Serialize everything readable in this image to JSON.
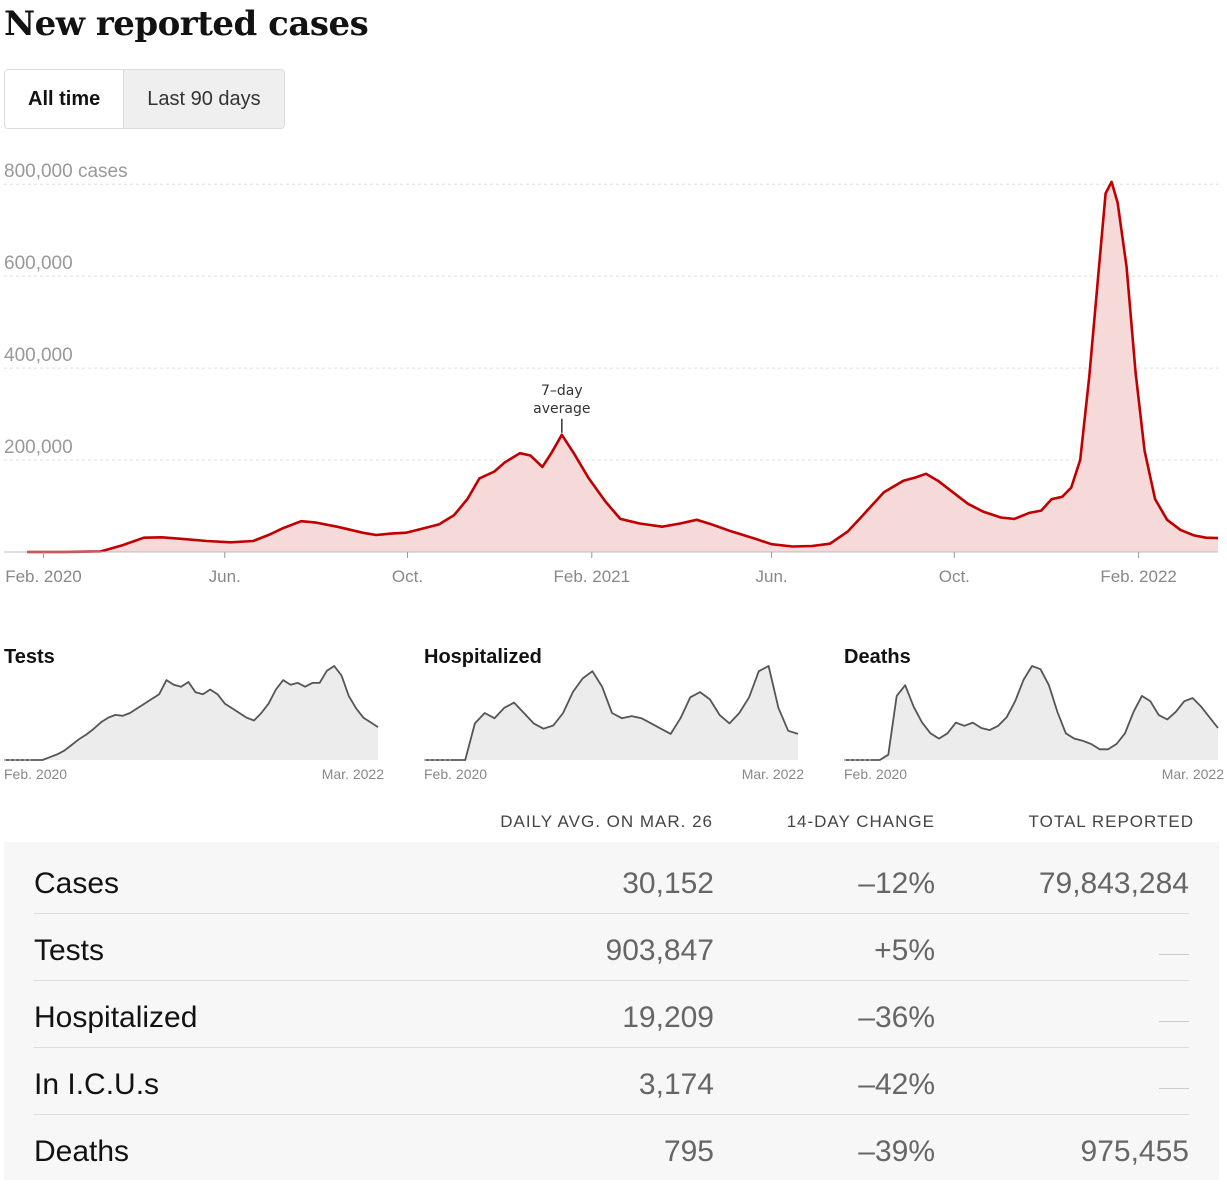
{
  "header": {
    "title": "New reported cases"
  },
  "toggle": {
    "options": [
      "All time",
      "Last 90 days"
    ],
    "selected": "All time"
  },
  "colors": {
    "line": "#c00000",
    "fill": "#f6dada",
    "small_line": "#555555",
    "small_fill": "#ececec"
  },
  "chart_data": [
    {
      "type": "area",
      "title": "New reported cases",
      "y_unit_label": "cases",
      "y_ticks": [
        "800,000 cases",
        "600,000",
        "400,000",
        "200,000"
      ],
      "y_tick_values": [
        800000,
        600000,
        400000,
        200000
      ],
      "ylim": [
        0,
        820000
      ],
      "x_ticks": [
        "Feb. 2020",
        "Jun.",
        "Oct.",
        "Feb. 2021",
        "Jun.",
        "Oct.",
        "Feb. 2022"
      ],
      "x_tick_dates": [
        "2020-02-01",
        "2020-06-01",
        "2020-10-01",
        "2021-02-01",
        "2021-06-01",
        "2021-10-01",
        "2022-02-01"
      ],
      "xlim": [
        "2020-01-21",
        "2022-03-26"
      ],
      "grid": true,
      "annotation": {
        "text_lines": [
          "7–day",
          "average"
        ],
        "date": "2021-01-12",
        "value": 255000
      },
      "series": [
        {
          "points": [
            [
              "2020-01-21",
              0
            ],
            [
              "2020-02-15",
              0
            ],
            [
              "2020-03-10",
              1000
            ],
            [
              "2020-03-25",
              15000
            ],
            [
              "2020-04-08",
              31000
            ],
            [
              "2020-04-20",
              32000
            ],
            [
              "2020-05-05",
              28000
            ],
            [
              "2020-05-20",
              24000
            ],
            [
              "2020-06-05",
              21000
            ],
            [
              "2020-06-20",
              24000
            ],
            [
              "2020-07-01",
              38000
            ],
            [
              "2020-07-10",
              52000
            ],
            [
              "2020-07-22",
              67000
            ],
            [
              "2020-08-01",
              64000
            ],
            [
              "2020-08-15",
              55000
            ],
            [
              "2020-09-01",
              42000
            ],
            [
              "2020-09-10",
              37000
            ],
            [
              "2020-09-20",
              40000
            ],
            [
              "2020-09-30",
              42000
            ],
            [
              "2020-10-10",
              50000
            ],
            [
              "2020-10-22",
              60000
            ],
            [
              "2020-11-01",
              80000
            ],
            [
              "2020-11-10",
              115000
            ],
            [
              "2020-11-18",
              160000
            ],
            [
              "2020-11-28",
              175000
            ],
            [
              "2020-12-05",
              195000
            ],
            [
              "2020-12-15",
              215000
            ],
            [
              "2020-12-22",
              210000
            ],
            [
              "2020-12-30",
              185000
            ],
            [
              "2021-01-05",
              215000
            ],
            [
              "2021-01-12",
              255000
            ],
            [
              "2021-01-20",
              215000
            ],
            [
              "2021-01-30",
              160000
            ],
            [
              "2021-02-10",
              110000
            ],
            [
              "2021-02-20",
              72000
            ],
            [
              "2021-03-05",
              62000
            ],
            [
              "2021-03-20",
              55000
            ],
            [
              "2021-04-01",
              62000
            ],
            [
              "2021-04-12",
              70000
            ],
            [
              "2021-04-22",
              60000
            ],
            [
              "2021-05-05",
              45000
            ],
            [
              "2021-05-20",
              30000
            ],
            [
              "2021-06-01",
              17000
            ],
            [
              "2021-06-15",
              12000
            ],
            [
              "2021-06-28",
              13000
            ],
            [
              "2021-07-10",
              18000
            ],
            [
              "2021-07-22",
              45000
            ],
            [
              "2021-08-01",
              80000
            ],
            [
              "2021-08-15",
              130000
            ],
            [
              "2021-08-28",
              155000
            ],
            [
              "2021-09-05",
              162000
            ],
            [
              "2021-09-12",
              170000
            ],
            [
              "2021-09-20",
              155000
            ],
            [
              "2021-09-30",
              130000
            ],
            [
              "2021-10-10",
              105000
            ],
            [
              "2021-10-20",
              88000
            ],
            [
              "2021-11-01",
              75000
            ],
            [
              "2021-11-10",
              72000
            ],
            [
              "2021-11-20",
              85000
            ],
            [
              "2021-11-28",
              90000
            ],
            [
              "2021-12-05",
              115000
            ],
            [
              "2021-12-12",
              120000
            ],
            [
              "2021-12-18",
              140000
            ],
            [
              "2021-12-24",
              200000
            ],
            [
              "2021-12-30",
              380000
            ],
            [
              "2022-01-05",
              600000
            ],
            [
              "2022-01-10",
              780000
            ],
            [
              "2022-01-14",
              805000
            ],
            [
              "2022-01-18",
              760000
            ],
            [
              "2022-01-24",
              620000
            ],
            [
              "2022-01-30",
              390000
            ],
            [
              "2022-02-05",
              220000
            ],
            [
              "2022-02-12",
              115000
            ],
            [
              "2022-02-20",
              70000
            ],
            [
              "2022-03-01",
              48000
            ],
            [
              "2022-03-10",
              36000
            ],
            [
              "2022-03-18",
              31000
            ],
            [
              "2022-03-26",
              30152
            ]
          ]
        }
      ]
    },
    {
      "type": "area",
      "title": "Tests",
      "x_start_label": "Feb. 2020",
      "x_end_label": "Mar. 2022",
      "series": [
        {
          "values": [
            0,
            0,
            0,
            0,
            0,
            0,
            3,
            6,
            10,
            16,
            22,
            27,
            33,
            40,
            45,
            48,
            47,
            50,
            55,
            60,
            65,
            70,
            85,
            80,
            78,
            83,
            72,
            70,
            75,
            70,
            60,
            55,
            50,
            45,
            42,
            50,
            60,
            75,
            85,
            80,
            82,
            78,
            82,
            82,
            95,
            100,
            90,
            68,
            55,
            45,
            40,
            35
          ]
        }
      ]
    },
    {
      "type": "area",
      "title": "Hospitalized",
      "x_start_label": "Feb. 2020",
      "x_end_label": "Mar. 2022",
      "series": [
        {
          "values": [
            0,
            0,
            0,
            0,
            0,
            35,
            45,
            40,
            50,
            55,
            45,
            35,
            30,
            33,
            45,
            65,
            78,
            85,
            70,
            45,
            40,
            42,
            40,
            35,
            30,
            25,
            40,
            60,
            65,
            58,
            43,
            35,
            45,
            60,
            85,
            90,
            50,
            28,
            25
          ]
        }
      ]
    },
    {
      "type": "area",
      "title": "Deaths",
      "x_start_label": "Feb. 2020",
      "x_end_label": "Mar. 2022",
      "series": [
        {
          "values": [
            0,
            0,
            0,
            0,
            0,
            5,
            60,
            70,
            50,
            35,
            25,
            20,
            25,
            35,
            32,
            35,
            30,
            28,
            32,
            40,
            55,
            75,
            88,
            85,
            70,
            45,
            25,
            20,
            18,
            15,
            10,
            10,
            15,
            25,
            45,
            60,
            55,
            42,
            38,
            45,
            55,
            58,
            50,
            40,
            30
          ]
        }
      ]
    }
  ],
  "stats_table": {
    "headers": [
      "DAILY AVG. ON MAR. 26",
      "14-DAY CHANGE",
      "TOTAL REPORTED"
    ],
    "rows": [
      {
        "label": "Cases",
        "daily_avg": "30,152",
        "change": "–12%",
        "total": "79,843,284"
      },
      {
        "label": "Tests",
        "daily_avg": "903,847",
        "change": "+5%",
        "total": ""
      },
      {
        "label": "Hospitalized",
        "daily_avg": "19,209",
        "change": "–36%",
        "total": ""
      },
      {
        "label": "In I.C.U.s",
        "daily_avg": "3,174",
        "change": "–42%",
        "total": ""
      },
      {
        "label": "Deaths",
        "daily_avg": "795",
        "change": "–39%",
        "total": "975,455"
      }
    ]
  }
}
